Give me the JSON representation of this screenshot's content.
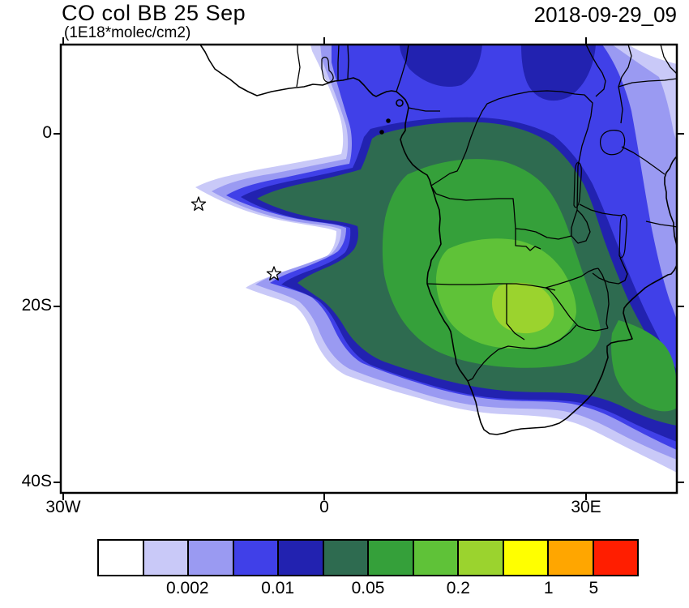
{
  "header": {
    "title": "CO col BB 25 Sep",
    "subtitle": "(1E18*molec/cm2)",
    "datetime": "2018-09-29_09"
  },
  "axes": {
    "y_ticks": [
      "0",
      "20S",
      "40S"
    ],
    "x_ticks": [
      "30W",
      "0",
      "30E"
    ]
  },
  "colorbar": {
    "colors": [
      "#ffffff",
      "#c9c9f8",
      "#9a9af2",
      "#4040e8",
      "#2222b0",
      "#2e6b50",
      "#35a03a",
      "#5fc238",
      "#9bd32e",
      "#ffff00",
      "#ffa600",
      "#ff1e00"
    ],
    "labels": [
      "0.002",
      "0.01",
      "0.05",
      "0.2",
      "1",
      "5"
    ],
    "label_boundaries": [
      2,
      4,
      6,
      8,
      10,
      11
    ],
    "cell_count": 12
  },
  "chart_data": {
    "type": "heatmap",
    "title": "CO col BB 25 Sep",
    "subtitle_units": "(1E18*molec/cm2)",
    "timestamp_label": "2018-09-29_09",
    "x_axis": {
      "tick_labels": [
        "30W",
        "0",
        "30E"
      ]
    },
    "y_axis": {
      "tick_labels": [
        "0",
        "20S",
        "40S"
      ]
    },
    "legend_position": "bottom",
    "colorbar_tick_values": [
      0.002,
      0.01,
      0.05,
      0.2,
      1,
      5
    ],
    "palette": [
      "#ffffff",
      "#c9c9f8",
      "#9a9af2",
      "#4040e8",
      "#2222b0",
      "#2e6b50",
      "#35a03a",
      "#5fc238",
      "#9bd32e",
      "#ffff00",
      "#ffa600",
      "#ff1e00"
    ],
    "description": "Filled-contour map of CO column over Africa (approx. 30W-40E, 10N-41S). Highest shaded values (~0.2-1) form a green core over Zambia, eastern Angola, Zimbabwe and northern Botswana; a dark-green/blue plume extends west over the South Atlantic in a wedge, with blue fringes over the Congo basin, East Africa and the Mozambique Channel; clear (white) over the northwest Atlantic and interior South Africa. Two star markers plotted over the ocean near the plume edges."
  }
}
